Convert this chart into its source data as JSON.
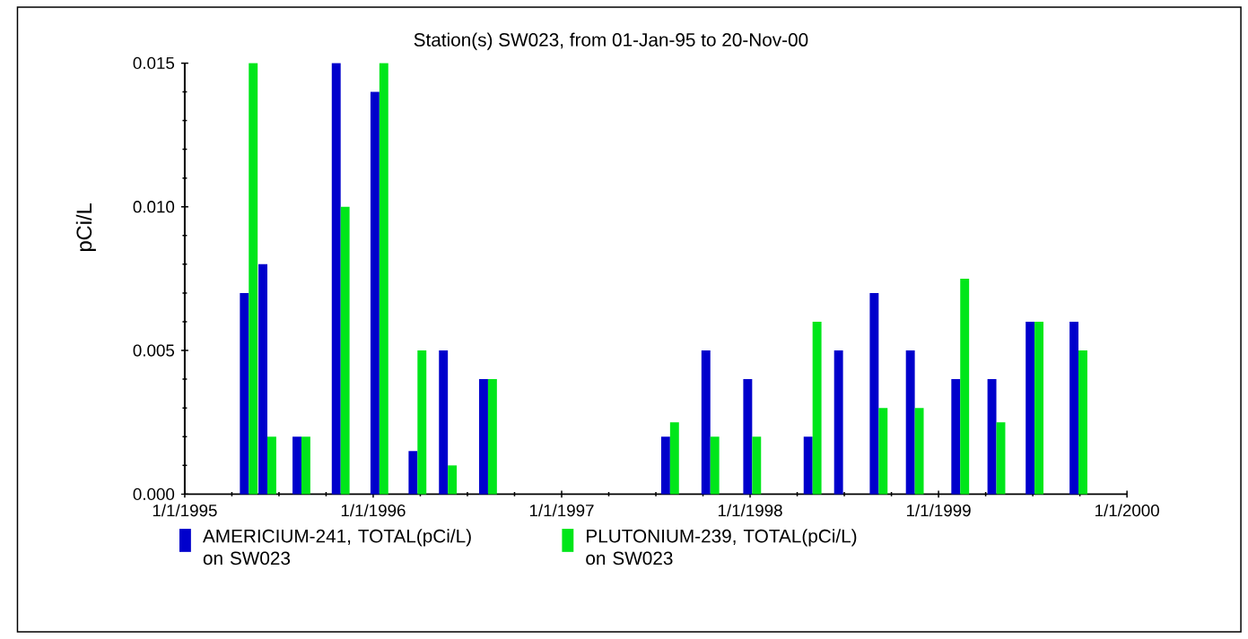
{
  "chart_data": {
    "type": "bar",
    "title": "Station(s) SW023, from 01-Jan-95 to 20-Nov-00",
    "ylabel": "pCi/L",
    "xlim": [
      "1995-01-01",
      "2000-01-01"
    ],
    "ylim": [
      0,
      0.015
    ],
    "xticks": [
      {
        "value": "1995-01-01",
        "label": "1/1/1995"
      },
      {
        "value": "1996-01-01",
        "label": "1/1/1996"
      },
      {
        "value": "1997-01-01",
        "label": "1/1/1997"
      },
      {
        "value": "1998-01-01",
        "label": "1/1/1998"
      },
      {
        "value": "1999-01-01",
        "label": "1/1/1999"
      },
      {
        "value": "2000-01-01",
        "label": "1/1/2000"
      }
    ],
    "yticks": [
      {
        "value": 0,
        "label": "0.000"
      },
      {
        "value": 0.005,
        "label": "0.005"
      },
      {
        "value": 0.01,
        "label": "0.010"
      },
      {
        "value": 0.015,
        "label": "0.015"
      }
    ],
    "legend": "bottom",
    "series": [
      {
        "name": "AMERICIUM-241, TOTAL(pCi/L) on SW023",
        "color": "#0000cc",
        "x": [
          "1995-05-05",
          "1995-06-10",
          "1995-08-15",
          "1995-10-30",
          "1996-01-13",
          "1996-03-27",
          "1996-05-25",
          "1996-08-11",
          "1997-07-30",
          "1997-10-16",
          "1998-01-05",
          "1998-05-02",
          "1998-06-30",
          "1998-09-07",
          "1998-11-16",
          "1999-02-12",
          "1999-04-23",
          "1999-07-06",
          "1999-09-29"
        ],
        "values": [
          0.007,
          0.008,
          0.002,
          0.015,
          0.014,
          0.0015,
          0.005,
          0.004,
          0.002,
          0.005,
          0.004,
          0.002,
          0.005,
          0.007,
          0.005,
          0.004,
          0.004,
          0.006,
          0.006
        ]
      },
      {
        "name": "PLUTONIUM-239, TOTAL(pCi/L) on SW023",
        "color": "#00e61a",
        "x": [
          "1995-05-05",
          "1995-06-10",
          "1995-08-15",
          "1995-10-30",
          "1996-01-13",
          "1996-03-27",
          "1996-05-25",
          "1996-08-11",
          "1997-07-30",
          "1997-10-16",
          "1998-01-05",
          "1998-05-02",
          "1998-06-30",
          "1998-09-07",
          "1998-11-16",
          "1999-02-12",
          "1999-04-23",
          "1999-07-06",
          "1999-09-29"
        ],
        "values": [
          0.015,
          0.002,
          0.002,
          0.01,
          0.015,
          0.005,
          0.001,
          0.004,
          0.0025,
          0.002,
          0.002,
          0.006,
          null,
          0.003,
          0.003,
          0.0075,
          0.0025,
          0.006,
          0.005
        ]
      }
    ]
  }
}
